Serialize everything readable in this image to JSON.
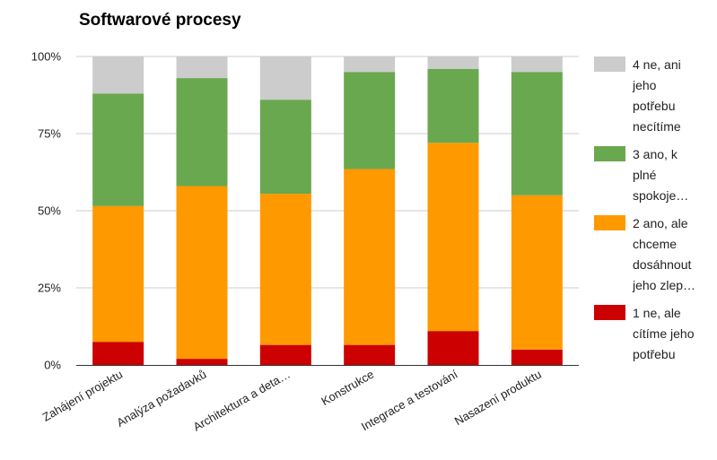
{
  "chart_data": {
    "type": "bar",
    "stacked": true,
    "normalized": true,
    "title": "Softwarové procesy",
    "xlabel": "",
    "ylabel": "",
    "ylim": [
      0,
      100
    ],
    "y_ticks": [
      "0%",
      "25%",
      "50%",
      "75%",
      "100%"
    ],
    "categories": [
      "Zahájení projektu",
      "Analýza požadavků",
      "Architektura a deta…",
      "Konstrukce",
      "Integrace a testování",
      "Nasazení produktu"
    ],
    "series": [
      {
        "name": "1 ne, ale cítíme jeho potřebu",
        "color": "#cc0000",
        "legend_lines": [
          "1 ne, ale",
          "cítíme jeho",
          "potřebu"
        ],
        "values": [
          7.5,
          2,
          6.5,
          6.5,
          11,
          5
        ]
      },
      {
        "name": "2 ano, ale chceme dosáhnout jeho zlep…",
        "color": "#ff9900",
        "legend_lines": [
          "2 ano, ale",
          "chceme",
          "dosáhnout",
          "jeho zlep…"
        ],
        "values": [
          44,
          56,
          49,
          57,
          61,
          50
        ]
      },
      {
        "name": "3 ano, k plné spokoje…",
        "color": "#6aa84f",
        "legend_lines": [
          "3 ano, k",
          "plné",
          "spokoje…"
        ],
        "values": [
          36.5,
          35,
          30.5,
          31.5,
          24,
          40
        ]
      },
      {
        "name": "4 ne, ani jeho potřebu necítíme",
        "color": "#cccccc",
        "legend_lines": [
          "4 ne, ani",
          "jeho",
          "potřebu",
          "necítíme"
        ],
        "values": [
          12,
          7,
          14,
          5,
          4,
          5
        ]
      }
    ],
    "legend_order": [
      3,
      2,
      1,
      0
    ],
    "legend_position": "right",
    "grid": true
  }
}
